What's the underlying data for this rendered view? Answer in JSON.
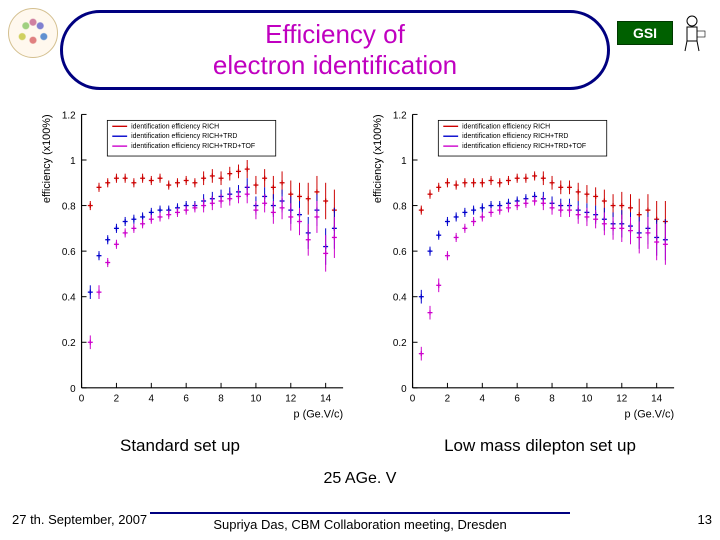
{
  "title": "Efficiency of\nelectron identification",
  "logos": {
    "left_name": "cbm-logo",
    "right_text": "GSI"
  },
  "axes": {
    "xlabel": "p (Ge.V/c)",
    "ylabel": "efficiency (x100%)",
    "xlim": [
      0,
      15
    ],
    "xtick_step": 2,
    "ylim": [
      0,
      1.2
    ],
    "ytick_step": 0.2,
    "axis_color": "#000000",
    "label_fontsize": 11,
    "tick_fontsize": 10
  },
  "legend": {
    "entries": [
      {
        "label": "identification efficiency RICH",
        "color": "#cc0000"
      },
      {
        "label": "identification efficiency RICH+TRD",
        "color": "#0000cc"
      },
      {
        "label": "identification efficiency RICH+TRD+TOF",
        "color": "#cc00cc"
      }
    ],
    "border_color": "#000000",
    "font_size": 7
  },
  "marker": {
    "style": "plus",
    "size": 5,
    "err_cap": 2
  },
  "plot_left": {
    "caption": "Standard set up",
    "x": [
      0.5,
      1.0,
      1.5,
      2.0,
      2.5,
      3.0,
      3.5,
      4.0,
      4.5,
      5.0,
      5.5,
      6.0,
      6.5,
      7.0,
      7.5,
      8.0,
      8.5,
      9.0,
      9.5,
      10.0,
      10.5,
      11.0,
      11.5,
      12.0,
      12.5,
      13.0,
      13.5,
      14.0,
      14.5
    ],
    "series": [
      {
        "name": "RICH",
        "color": "#cc0000",
        "y": [
          0.8,
          0.88,
          0.9,
          0.92,
          0.92,
          0.9,
          0.92,
          0.91,
          0.92,
          0.89,
          0.9,
          0.91,
          0.9,
          0.92,
          0.93,
          0.92,
          0.94,
          0.95,
          0.96,
          0.89,
          0.92,
          0.88,
          0.9,
          0.85,
          0.84,
          0.83,
          0.86,
          0.82,
          0.78
        ],
        "err": [
          0.02,
          0.02,
          0.02,
          0.02,
          0.02,
          0.02,
          0.02,
          0.02,
          0.02,
          0.02,
          0.02,
          0.02,
          0.02,
          0.03,
          0.03,
          0.03,
          0.03,
          0.03,
          0.04,
          0.04,
          0.04,
          0.05,
          0.05,
          0.06,
          0.06,
          0.07,
          0.07,
          0.08,
          0.09
        ]
      },
      {
        "name": "RICH+TRD",
        "color": "#0000cc",
        "y": [
          0.42,
          0.58,
          0.65,
          0.7,
          0.73,
          0.74,
          0.75,
          0.77,
          0.78,
          0.78,
          0.79,
          0.8,
          0.8,
          0.82,
          0.83,
          0.84,
          0.85,
          0.86,
          0.88,
          0.8,
          0.84,
          0.8,
          0.82,
          0.78,
          0.76,
          0.68,
          0.78,
          0.62,
          0.7
        ],
        "err": [
          0.03,
          0.02,
          0.02,
          0.02,
          0.02,
          0.02,
          0.02,
          0.02,
          0.02,
          0.02,
          0.02,
          0.02,
          0.02,
          0.03,
          0.03,
          0.03,
          0.03,
          0.03,
          0.04,
          0.04,
          0.04,
          0.05,
          0.05,
          0.06,
          0.06,
          0.07,
          0.07,
          0.08,
          0.09
        ]
      },
      {
        "name": "RICH+TRD+TOF",
        "color": "#cc00cc",
        "y": [
          0.2,
          0.42,
          0.55,
          0.63,
          0.68,
          0.7,
          0.72,
          0.74,
          0.75,
          0.76,
          0.77,
          0.78,
          0.79,
          0.8,
          0.81,
          0.82,
          0.83,
          0.84,
          0.85,
          0.78,
          0.81,
          0.77,
          0.79,
          0.75,
          0.73,
          0.65,
          0.75,
          0.59,
          0.66
        ],
        "err": [
          0.03,
          0.03,
          0.02,
          0.02,
          0.02,
          0.02,
          0.02,
          0.02,
          0.02,
          0.02,
          0.02,
          0.02,
          0.02,
          0.03,
          0.03,
          0.03,
          0.03,
          0.03,
          0.04,
          0.04,
          0.04,
          0.05,
          0.05,
          0.06,
          0.06,
          0.07,
          0.07,
          0.08,
          0.09
        ]
      }
    ]
  },
  "plot_right": {
    "caption": "Low mass dilepton set up",
    "x": [
      0.5,
      1.0,
      1.5,
      2.0,
      2.5,
      3.0,
      3.5,
      4.0,
      4.5,
      5.0,
      5.5,
      6.0,
      6.5,
      7.0,
      7.5,
      8.0,
      8.5,
      9.0,
      9.5,
      10.0,
      10.5,
      11.0,
      11.5,
      12.0,
      12.5,
      13.0,
      13.5,
      14.0,
      14.5
    ],
    "series": [
      {
        "name": "RICH",
        "color": "#cc0000",
        "y": [
          0.78,
          0.85,
          0.88,
          0.9,
          0.89,
          0.9,
          0.9,
          0.9,
          0.91,
          0.9,
          0.91,
          0.92,
          0.92,
          0.93,
          0.92,
          0.9,
          0.88,
          0.88,
          0.86,
          0.85,
          0.84,
          0.82,
          0.8,
          0.8,
          0.79,
          0.76,
          0.78,
          0.74,
          0.73
        ],
        "err": [
          0.02,
          0.02,
          0.02,
          0.02,
          0.02,
          0.02,
          0.02,
          0.02,
          0.02,
          0.02,
          0.02,
          0.02,
          0.02,
          0.02,
          0.03,
          0.03,
          0.03,
          0.03,
          0.04,
          0.04,
          0.04,
          0.05,
          0.05,
          0.06,
          0.06,
          0.07,
          0.07,
          0.08,
          0.09
        ]
      },
      {
        "name": "RICH+TRD",
        "color": "#0000cc",
        "y": [
          0.4,
          0.6,
          0.67,
          0.73,
          0.75,
          0.77,
          0.78,
          0.79,
          0.8,
          0.8,
          0.81,
          0.82,
          0.83,
          0.84,
          0.83,
          0.81,
          0.8,
          0.8,
          0.78,
          0.77,
          0.76,
          0.74,
          0.72,
          0.72,
          0.71,
          0.68,
          0.7,
          0.66,
          0.65
        ],
        "err": [
          0.03,
          0.02,
          0.02,
          0.02,
          0.02,
          0.02,
          0.02,
          0.02,
          0.02,
          0.02,
          0.02,
          0.02,
          0.02,
          0.02,
          0.03,
          0.03,
          0.03,
          0.03,
          0.04,
          0.04,
          0.04,
          0.05,
          0.05,
          0.06,
          0.06,
          0.07,
          0.07,
          0.08,
          0.09
        ]
      },
      {
        "name": "RICH+TRD+TOF",
        "color": "#cc00cc",
        "y": [
          0.15,
          0.33,
          0.45,
          0.58,
          0.66,
          0.7,
          0.73,
          0.75,
          0.77,
          0.78,
          0.79,
          0.8,
          0.81,
          0.82,
          0.81,
          0.79,
          0.78,
          0.78,
          0.76,
          0.75,
          0.74,
          0.72,
          0.7,
          0.7,
          0.69,
          0.66,
          0.68,
          0.64,
          0.63
        ],
        "err": [
          0.03,
          0.03,
          0.03,
          0.02,
          0.02,
          0.02,
          0.02,
          0.02,
          0.02,
          0.02,
          0.02,
          0.02,
          0.02,
          0.02,
          0.03,
          0.03,
          0.03,
          0.03,
          0.04,
          0.04,
          0.04,
          0.05,
          0.05,
          0.06,
          0.06,
          0.07,
          0.07,
          0.08,
          0.09
        ]
      }
    ]
  },
  "energy_label": "25 AGe. V",
  "footer": {
    "date": "27 th. September, 2007",
    "center": "Supriya Das, CBM Collaboration meeting, Dresden",
    "page": "13"
  },
  "colors": {
    "title_text": "#c000c0",
    "banner_border": "#000080",
    "background": "#ffffff"
  }
}
